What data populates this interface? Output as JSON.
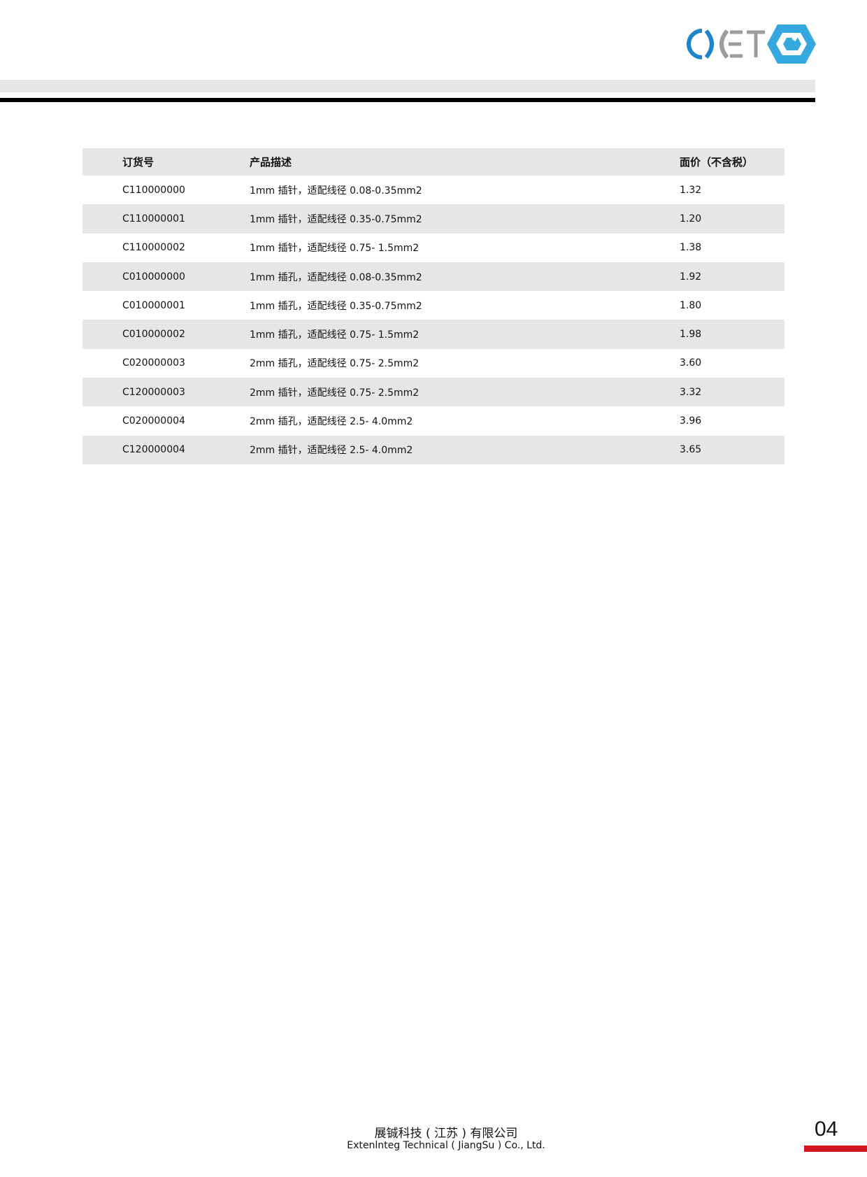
{
  "header": {
    "logo_text": "CXET",
    "brand_colors": {
      "blue": "#1b86cc",
      "gray": "#9c9c9c",
      "hex_blue": "#35a8e0"
    }
  },
  "table": {
    "columns": [
      "订货号",
      "产品描述",
      "面价（不含税）"
    ],
    "rows": [
      {
        "code": "C110000000",
        "desc": "1mm 插针，适配线径 0.08-0.35mm2",
        "price": "1.32"
      },
      {
        "code": "C110000001",
        "desc": "1mm 插针，适配线径 0.35-0.75mm2",
        "price": "1.20"
      },
      {
        "code": "C110000002",
        "desc": "1mm 插针，适配线径 0.75- 1.5mm2",
        "price": "1.38"
      },
      {
        "code": "C010000000",
        "desc": "1mm 插孔，适配线径 0.08-0.35mm2",
        "price": "1.92"
      },
      {
        "code": "C010000001",
        "desc": "1mm 插孔，适配线径 0.35-0.75mm2",
        "price": "1.80"
      },
      {
        "code": "C010000002",
        "desc": "1mm 插孔，适配线径 0.75- 1.5mm2",
        "price": "1.98"
      },
      {
        "code": "C020000003",
        "desc": "2mm 插孔，适配线径 0.75- 2.5mm2",
        "price": "3.60"
      },
      {
        "code": "C120000003",
        "desc": "2mm 插针，适配线径 0.75- 2.5mm2",
        "price": "3.32"
      },
      {
        "code": "C020000004",
        "desc": "2mm 插孔，适配线径 2.5- 4.0mm2",
        "price": "3.96"
      },
      {
        "code": "C120000004",
        "desc": "2mm 插针，适配线径 2.5- 4.0mm2",
        "price": "3.65"
      }
    ]
  },
  "footer": {
    "company_cn": "展铖科技 ( 江苏 ) 有限公司",
    "company_en": "Extenlnteg Technical ( JiangSu ) Co., Ltd.",
    "page_number": "04",
    "accent": "#d0161e"
  }
}
